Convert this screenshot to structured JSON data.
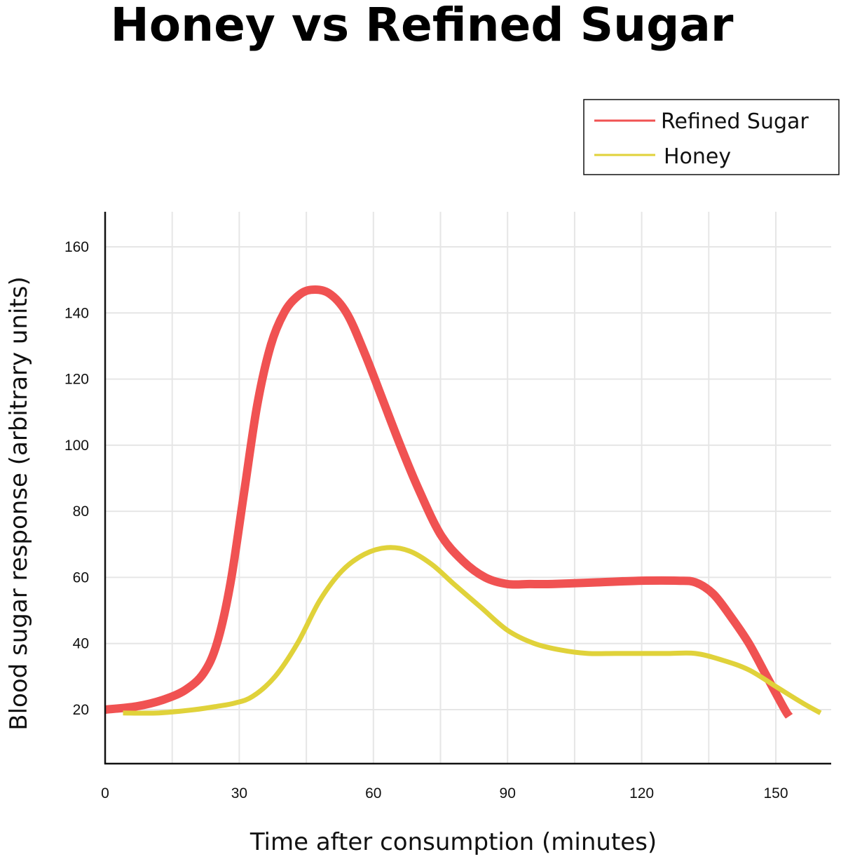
{
  "chart_data": {
    "type": "line",
    "title": "Honey vs Refined Sugar",
    "xlabel": "Time after consumption (minutes)",
    "ylabel": "Blood sugar response (arbitrary units)",
    "xlim": [
      0,
      165
    ],
    "ylim": [
      3,
      170
    ],
    "x_ticks": [
      0,
      30,
      60,
      90,
      120,
      150
    ],
    "y_ticks": [
      20,
      40,
      60,
      80,
      100,
      120,
      140,
      160
    ],
    "grid": true,
    "legend_position": "top-right",
    "series": [
      {
        "name": "Refined Sugar",
        "color": "#f05252",
        "x": [
          0,
          7,
          13,
          18,
          22,
          25,
          28,
          31,
          34,
          37,
          40,
          43,
          46,
          50,
          54,
          58,
          62,
          66,
          70,
          75,
          80,
          85,
          90,
          95,
          100,
          110,
          120,
          128,
          132,
          136,
          140,
          144,
          148,
          152,
          153
        ],
        "y": [
          20,
          21,
          23,
          26,
          31,
          40,
          58,
          85,
          112,
          130,
          140,
          145,
          147,
          146,
          140,
          128,
          114,
          100,
          87,
          73,
          65,
          60,
          58,
          58,
          58,
          58.5,
          59,
          59,
          58.5,
          55,
          48,
          40,
          30,
          20,
          18
        ]
      },
      {
        "name": "Honey",
        "color": "#e0d23a",
        "x": [
          4,
          12,
          20,
          25,
          29,
          33,
          38,
          43,
          48,
          53,
          58,
          63,
          68,
          73,
          78,
          84,
          90,
          96,
          102,
          108,
          114,
          120,
          126,
          132,
          138,
          144,
          150,
          156,
          160
        ],
        "y": [
          19,
          19,
          20,
          21,
          22,
          24,
          30,
          40,
          53,
          62,
          67,
          69,
          68,
          64,
          58,
          51,
          44,
          40,
          38,
          37,
          37,
          37,
          37,
          37,
          35,
          32,
          27,
          22,
          19
        ]
      }
    ]
  }
}
